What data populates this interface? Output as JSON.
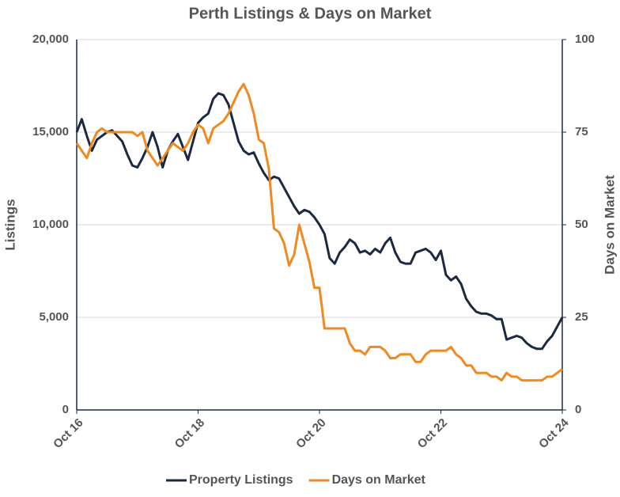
{
  "chart_data": {
    "type": "line",
    "title": "Perth Listings & Days on Market",
    "y_label": "Listings",
    "y2_label": "Days on Market",
    "x": [
      "Oct 16",
      "Nov 16",
      "Dec 16",
      "Jan 17",
      "Feb 17",
      "Mar 17",
      "Apr 17",
      "May 17",
      "Jun 17",
      "Jul 17",
      "Aug 17",
      "Sep 17",
      "Oct 17",
      "Nov 17",
      "Dec 17",
      "Jan 18",
      "Feb 18",
      "Mar 18",
      "Apr 18",
      "May 18",
      "Jun 18",
      "Jul 18",
      "Aug 18",
      "Sep 18",
      "Oct 18",
      "Nov 18",
      "Dec 18",
      "Jan 19",
      "Feb 19",
      "Mar 19",
      "Apr 19",
      "May 19",
      "Jun 19",
      "Jul 19",
      "Aug 19",
      "Sep 19",
      "Oct 19",
      "Nov 19",
      "Dec 19",
      "Jan 20",
      "Feb 20",
      "Mar 20",
      "Apr 20",
      "May 20",
      "Jun 20",
      "Jul 20",
      "Aug 20",
      "Sep 20",
      "Oct 20",
      "Nov 20",
      "Dec 20",
      "Jan 21",
      "Feb 21",
      "Mar 21",
      "Apr 21",
      "May 21",
      "Jun 21",
      "Jul 21",
      "Aug 21",
      "Sep 21",
      "Oct 21",
      "Nov 21",
      "Dec 21",
      "Jan 22",
      "Feb 22",
      "Mar 22",
      "Apr 22",
      "May 22",
      "Jun 22",
      "Jul 22",
      "Aug 22",
      "Sep 22",
      "Oct 22",
      "Nov 22",
      "Dec 22",
      "Jan 23",
      "Feb 23",
      "Mar 23",
      "Apr 23",
      "May 23",
      "Jun 23",
      "Jul 23",
      "Aug 23",
      "Sep 23",
      "Oct 23",
      "Nov 23",
      "Dec 23",
      "Jan 24",
      "Feb 24",
      "Mar 24",
      "Apr 24",
      "May 24",
      "Jun 24",
      "Jul 24",
      "Aug 24",
      "Sep 24",
      "Oct 24"
    ],
    "xticks": [
      "Oct 16",
      "Oct 18",
      "Oct 20",
      "Oct 22",
      "Oct 24"
    ],
    "series": [
      {
        "name": "Property Listings",
        "color": "#1b2a41",
        "axis": "y",
        "values": [
          15000,
          15700,
          14800,
          14000,
          14600,
          14800,
          15000,
          15100,
          14800,
          14500,
          13800,
          13200,
          13100,
          13600,
          14200,
          15000,
          14200,
          13100,
          14000,
          14500,
          14900,
          14200,
          13500,
          14500,
          15500,
          15800,
          16000,
          16800,
          17100,
          17000,
          16500,
          15500,
          14500,
          14000,
          13800,
          13900,
          13300,
          12800,
          12400,
          12600,
          12500,
          12000,
          11500,
          11000,
          10600,
          10800,
          10700,
          10400,
          10000,
          9500,
          8200,
          7900,
          8500,
          8800,
          9200,
          9000,
          8500,
          8600,
          8400,
          8700,
          8500,
          9000,
          9300,
          8500,
          8000,
          7900,
          7900,
          8500,
          8600,
          8700,
          8500,
          8100,
          8600,
          7300,
          7000,
          7200,
          6800,
          6000,
          5600,
          5300,
          5200,
          5200,
          5100,
          4900,
          4900,
          3800,
          3900,
          4000,
          3900,
          3600,
          3400,
          3300,
          3300,
          3700,
          4000,
          4500,
          5000
        ]
      },
      {
        "name": "Days on Market",
        "color": "#f0891f",
        "axis": "y2",
        "values": [
          72,
          70,
          68,
          72,
          75,
          76,
          75,
          75,
          75,
          75,
          75,
          75,
          74,
          75,
          70,
          68,
          66,
          68,
          70,
          72,
          71,
          70,
          72,
          75,
          77,
          76,
          72,
          76,
          77,
          78,
          80,
          83,
          86,
          88,
          85,
          80,
          73,
          72,
          65,
          49,
          48,
          45,
          39,
          42,
          50,
          45,
          40,
          33,
          33,
          22,
          22,
          22,
          22,
          22,
          18,
          16,
          16,
          15,
          17,
          17,
          17,
          16,
          14,
          14,
          15,
          15,
          15,
          13,
          13,
          15,
          16,
          16,
          16,
          16,
          17,
          15,
          14,
          12,
          12,
          10,
          10,
          10,
          9,
          9,
          8,
          10,
          9,
          9,
          8,
          8,
          8,
          8,
          8,
          9,
          9,
          10,
          11
        ]
      }
    ],
    "ylim": [
      0,
      20000
    ],
    "yticks": [
      0,
      {
        "value": 5000,
        "label": "5,000"
      },
      {
        "value": 10000,
        "label": "10,000"
      },
      {
        "value": 15000,
        "label": "15,000"
      },
      {
        "value": 20000,
        "label": "20,000"
      }
    ],
    "y2lim": [
      0,
      100
    ],
    "y2ticks": [
      0,
      25,
      50,
      75,
      100
    ],
    "grid": true,
    "legend": "bottom"
  }
}
